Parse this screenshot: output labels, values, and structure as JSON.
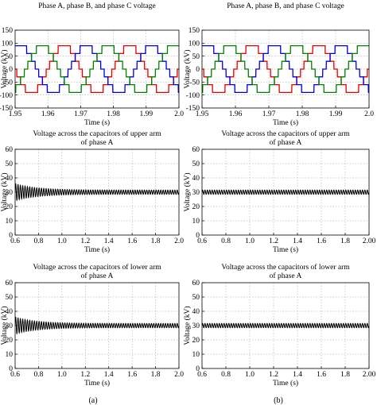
{
  "figure": {
    "captions": [
      "(a)",
      "(b)"
    ]
  },
  "chart_data": [
    {
      "type": "line",
      "title": "Phase A, phase B, and phase C voltage",
      "xlabel": "Time (s)",
      "ylabel": "Voltage (kV)",
      "xlim": [
        1.95,
        2.0
      ],
      "ylim": [
        -150,
        150
      ],
      "xticks": [
        "1.95",
        "1.96",
        "1.97",
        "1.98",
        "1.99",
        "2.0"
      ],
      "yticks": [
        "150",
        "100",
        "50",
        "0",
        "-50",
        "-100",
        "-150"
      ],
      "grid": true,
      "waveform": "staircase",
      "frequency_hz": 50,
      "amplitude_kv": 90,
      "series": [
        {
          "color": "#e00000",
          "phase_deg": 0
        },
        {
          "color": "#0000dd",
          "phase_deg": -120
        },
        {
          "color": "#008000",
          "phase_deg": 120
        }
      ]
    },
    {
      "type": "line",
      "title": "Phase A, phase B, and phase C voltage",
      "xlabel": "Time (s)",
      "ylabel": "Voltage (kV)",
      "xlim": [
        1.95,
        2.0
      ],
      "ylim": [
        -150,
        150
      ],
      "xticks": [
        "1.95",
        "1.96",
        "1.97",
        "1.98",
        "1.99",
        "2.0"
      ],
      "yticks": [
        "150",
        "100",
        "50",
        "0",
        "-50",
        "-100",
        "-150"
      ],
      "grid": true,
      "waveform": "staircase",
      "frequency_hz": 50,
      "amplitude_kv": 90,
      "series": [
        {
          "color": "#e00000",
          "phase_deg": 0
        },
        {
          "color": "#0000dd",
          "phase_deg": -120
        },
        {
          "color": "#008000",
          "phase_deg": 120
        }
      ]
    },
    {
      "type": "line",
      "title": "Voltage across the capacitors of upper arm of phase A",
      "title_lines": [
        "Voltage across the capacitors of upper arm",
        "of phase A"
      ],
      "xlabel": "Time (s)",
      "ylabel": "Voltage (kV)",
      "xlim": [
        0.6,
        2.0
      ],
      "ylim": [
        0,
        60
      ],
      "xticks": [
        "0.6",
        "0.8",
        "1.0",
        "1.2",
        "1.4",
        "1.6",
        "1.8",
        "2.0"
      ],
      "yticks": [
        "60",
        "50",
        "40",
        "30",
        "20",
        "10",
        "0"
      ],
      "grid": true,
      "series": [
        {
          "color": "#000000",
          "mean_kv": 30,
          "steady_ripple_kv": 1.5,
          "initial_ripple_kv": 4.5,
          "decay_time_s": 0.18
        }
      ]
    },
    {
      "type": "line",
      "title": "Voltage across the capacitors of upper arm of phase A",
      "title_lines": [
        "Voltage across the capacitors of upper arm",
        "of phase A"
      ],
      "xlabel": "Time (s)",
      "ylabel": "Voltage (kV)",
      "xlim": [
        0.6,
        2.0
      ],
      "ylim": [
        0,
        60
      ],
      "xticks": [
        "0.6",
        "0.8",
        "1.0",
        "1.2",
        "1.4",
        "1.6",
        "1.8",
        "2.00"
      ],
      "yticks": [
        "60",
        "50",
        "40",
        "30",
        "20",
        "10",
        "0"
      ],
      "grid": true,
      "series": [
        {
          "color": "#000000",
          "mean_kv": 30,
          "steady_ripple_kv": 1.5,
          "initial_ripple_kv": 0,
          "decay_time_s": 0.18
        }
      ]
    },
    {
      "type": "line",
      "title": "Voltage across the capacitors of lower arm of phase A",
      "title_lines": [
        "Voltage across the capacitors of lower arm",
        "of phase A"
      ],
      "xlabel": "Time (s)",
      "ylabel": "Voltage (kV)",
      "xlim": [
        0.6,
        2.0
      ],
      "ylim": [
        0,
        60
      ],
      "xticks": [
        "0.6",
        "0.8",
        "1.0",
        "1.2",
        "1.4",
        "1.6",
        "1.8",
        "2.0"
      ],
      "yticks": [
        "60",
        "50",
        "40",
        "30",
        "20",
        "10",
        "0"
      ],
      "grid": true,
      "series": [
        {
          "color": "#000000",
          "mean_kv": 30,
          "steady_ripple_kv": 1.5,
          "initial_ripple_kv": 4.5,
          "decay_time_s": 0.18
        }
      ]
    },
    {
      "type": "line",
      "title": "Voltage across the capacitors of lower arm of phase A",
      "title_lines": [
        "Voltage across the capacitors of lower arm",
        "of phase A"
      ],
      "xlabel": "Time (s)",
      "ylabel": "Voltage (kV)",
      "xlim": [
        0.6,
        2.0
      ],
      "ylim": [
        0,
        60
      ],
      "xticks": [
        "0.6",
        "0.8",
        "1.0",
        "1.2",
        "1.4",
        "1.6",
        "1.8",
        "2.00"
      ],
      "yticks": [
        "60",
        "50",
        "40",
        "30",
        "20",
        "10",
        "0"
      ],
      "grid": true,
      "series": [
        {
          "color": "#000000",
          "mean_kv": 30,
          "steady_ripple_kv": 1.5,
          "initial_ripple_kv": 0,
          "decay_time_s": 0.18
        }
      ]
    }
  ]
}
